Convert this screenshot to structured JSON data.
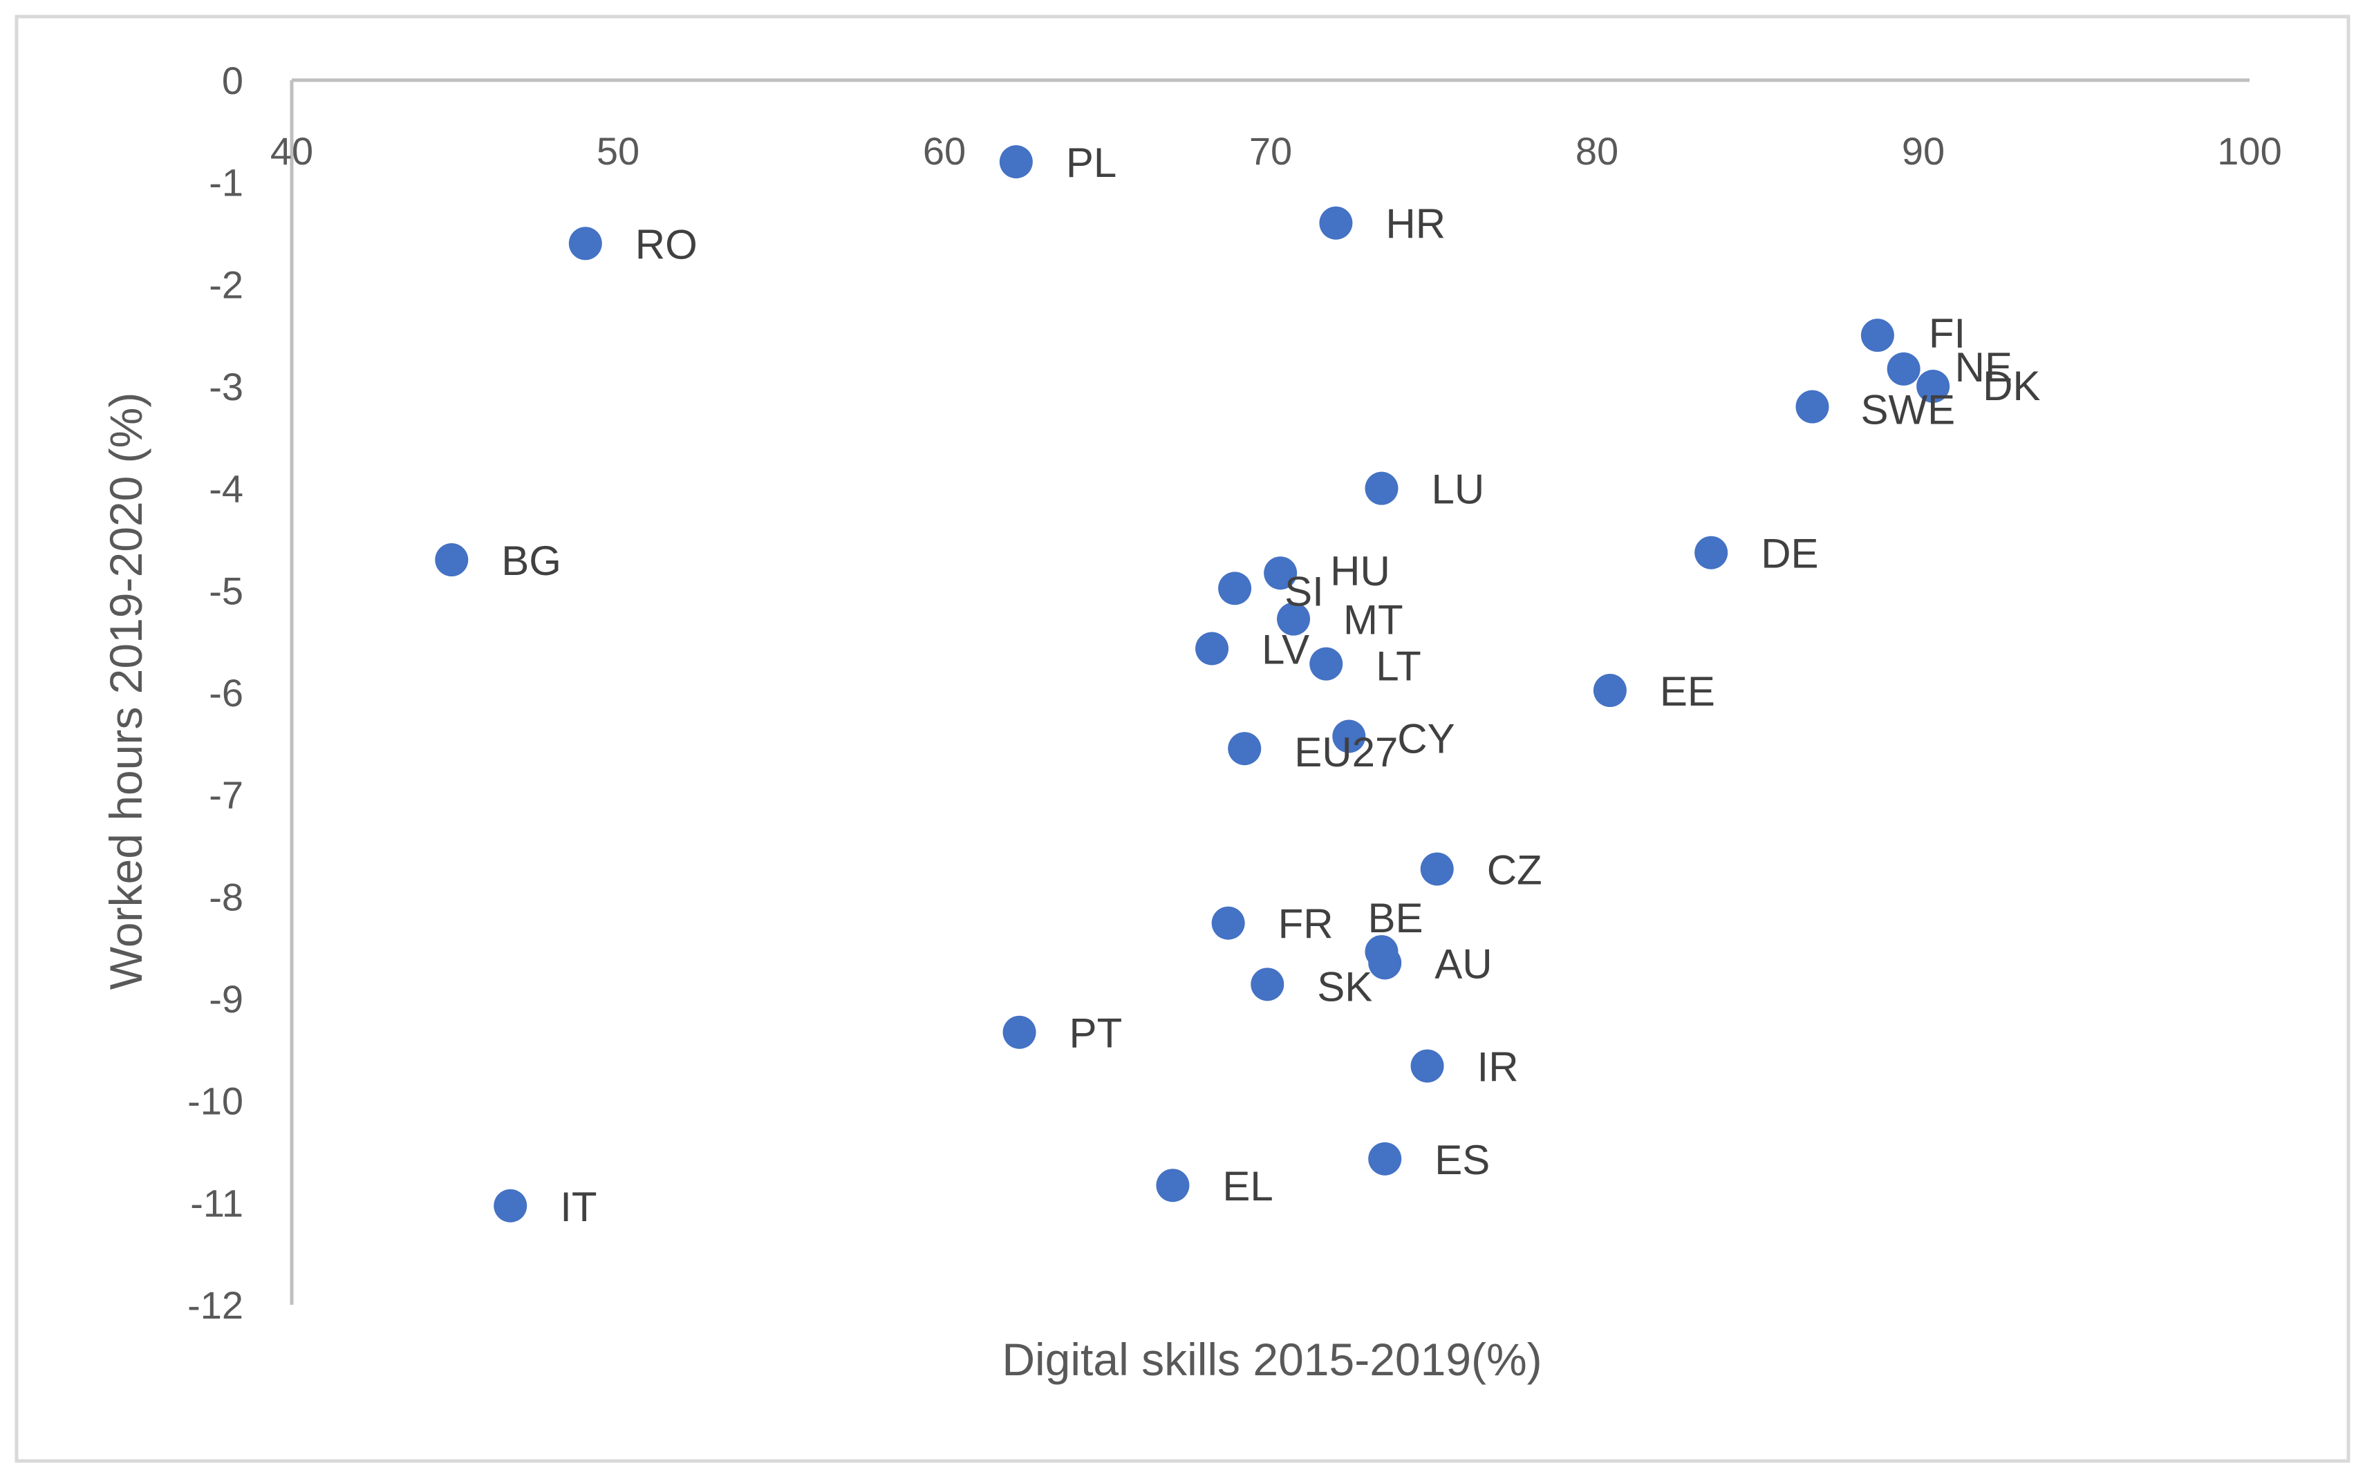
{
  "chart_data": {
    "type": "scatter",
    "title": "",
    "xlabel": "Digital skills 2015-2019(%)",
    "ylabel": "Worked hours 2019-2020 (%)",
    "xlim": [
      40,
      100
    ],
    "ylim": [
      -12,
      0
    ],
    "x_ticks": [
      40,
      50,
      60,
      70,
      80,
      90,
      100
    ],
    "y_ticks": [
      0,
      -1,
      -2,
      -3,
      -4,
      -5,
      -6,
      -7,
      -8,
      -9,
      -10,
      -11,
      -12
    ],
    "grid": false,
    "legend": "none",
    "marker_color": "#4472C4",
    "points": [
      {
        "label": "PL",
        "x": 62.2,
        "y": -0.8
      },
      {
        "label": "RO",
        "x": 49.0,
        "y": -1.6
      },
      {
        "label": "HR",
        "x": 72.0,
        "y": -1.4
      },
      {
        "label": "FI",
        "x": 88.6,
        "y": -2.5
      },
      {
        "label": "NE",
        "x": 89.4,
        "y": -2.83
      },
      {
        "label": "DK",
        "x": 90.3,
        "y": -3.0
      },
      {
        "label": "SWE",
        "x": 86.6,
        "y": -3.2
      },
      {
        "label": "LU",
        "x": 73.4,
        "y": -4.0
      },
      {
        "label": "DE",
        "x": 83.5,
        "y": -4.63
      },
      {
        "label": "BG",
        "x": 44.9,
        "y": -4.7
      },
      {
        "label": "HU",
        "x": 70.3,
        "y": -4.83
      },
      {
        "label": "SI",
        "x": 68.9,
        "y": -4.98
      },
      {
        "label": "MT",
        "x": 70.7,
        "y": -5.28
      },
      {
        "label": "LV",
        "x": 68.2,
        "y": -5.57
      },
      {
        "label": "LT",
        "x": 71.7,
        "y": -5.72
      },
      {
        "label": "EE",
        "x": 80.4,
        "y": -5.98
      },
      {
        "label": "CY",
        "x": 72.4,
        "y": -6.43
      },
      {
        "label": "EU27",
        "x": 69.2,
        "y": -6.55
      },
      {
        "label": "CZ",
        "x": 75.1,
        "y": -7.73
      },
      {
        "label": "FR",
        "x": 68.7,
        "y": -8.26
      },
      {
        "label": "BE",
        "x": 73.4,
        "y": -8.54
      },
      {
        "label": "AU",
        "x": 73.5,
        "y": -8.65
      },
      {
        "label": "SK",
        "x": 69.9,
        "y": -8.86
      },
      {
        "label": "PT",
        "x": 62.3,
        "y": -9.33
      },
      {
        "label": "IR",
        "x": 74.8,
        "y": -9.66
      },
      {
        "label": "ES",
        "x": 73.5,
        "y": -10.57
      },
      {
        "label": "EL",
        "x": 67.0,
        "y": -10.83
      },
      {
        "label": "IT",
        "x": 46.7,
        "y": -11.03
      }
    ]
  }
}
